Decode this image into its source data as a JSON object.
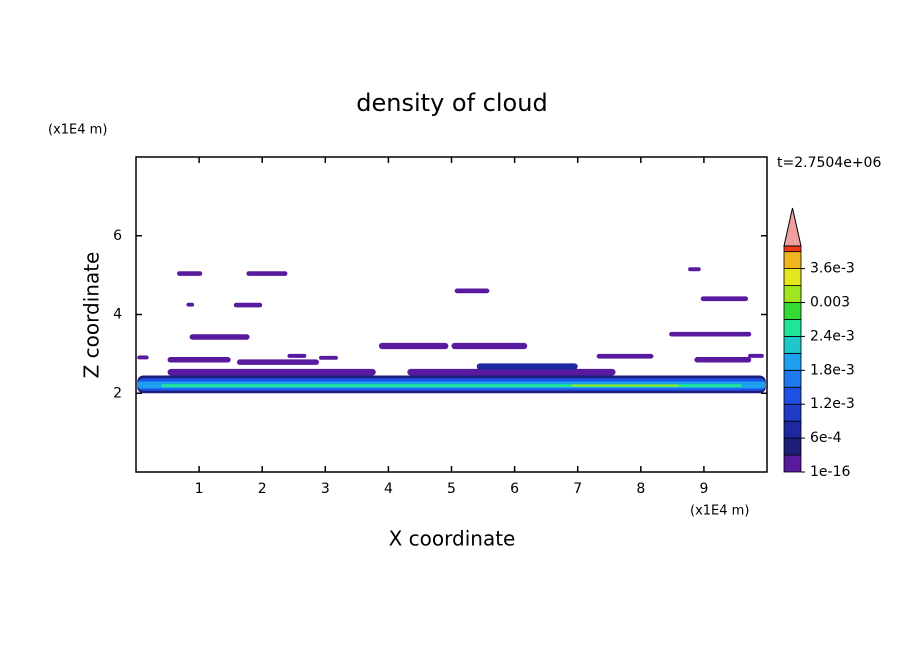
{
  "chart_data": {
    "type": "contour",
    "title": "density of cloud",
    "x_label": "X coordinate",
    "y_label": "Z coordinate",
    "x_unit": "(x1E4 m)",
    "y_unit": "(x1E4 m)",
    "time_label": "t=2.7504e+06",
    "xlim": [
      0,
      10
    ],
    "ylim": [
      0,
      8
    ],
    "xticks": [
      1,
      2,
      3,
      4,
      5,
      6,
      7,
      8,
      9
    ],
    "yticks": [
      2,
      4,
      6
    ],
    "colorbar": {
      "clim": [
        1e-16,
        0.004
      ],
      "levels": [
        1e-16,
        0.0003,
        0.0006,
        0.0009,
        0.0012,
        0.0015,
        0.0018,
        0.0021,
        0.0024,
        0.0027,
        0.003,
        0.0033,
        0.0036,
        0.0039
      ],
      "colors": [
        "#5a1aa0",
        "#1e1e78",
        "#1e28a0",
        "#1e3cc8",
        "#1e50e6",
        "#1e78f0",
        "#1ea0f0",
        "#1ec8c8",
        "#1ee696",
        "#32dc32",
        "#a0e61e",
        "#e6e61e",
        "#f0b41e",
        "#f03c1e"
      ],
      "extend_color": "#f0a0a0",
      "ticks": [
        1e-16,
        {
          "value": 0.0006,
          "label": "6e-4"
        },
        {
          "value": 0.0012,
          "label": "1.2e-3"
        },
        {
          "value": 0.0018,
          "label": "1.8e-3"
        },
        {
          "value": 0.0024,
          "label": "2.4e-3"
        },
        0.003,
        {
          "value": 0.0036,
          "label": "3.6e-3"
        }
      ]
    },
    "patches": [
      {
        "x": [
          0.02,
          9.98
        ],
        "z": [
          2.0,
          2.45
        ],
        "level": 1
      },
      {
        "x": [
          0.02,
          9.98
        ],
        "z": [
          2.06,
          2.38
        ],
        "level": 4
      },
      {
        "x": [
          0.02,
          9.98
        ],
        "z": [
          2.12,
          2.3
        ],
        "level": 6
      },
      {
        "x": [
          0.4,
          9.6
        ],
        "z": [
          2.16,
          2.23
        ],
        "level": 8
      },
      {
        "x": [
          6.9,
          8.6
        ],
        "z": [
          2.17,
          2.22
        ],
        "level": 10
      },
      {
        "x": [
          0.5,
          3.8
        ],
        "z": [
          2.45,
          2.62
        ],
        "level": 0
      },
      {
        "x": [
          4.3,
          7.6
        ],
        "z": [
          2.45,
          2.62
        ],
        "level": 0
      },
      {
        "x": [
          5.4,
          7.0
        ],
        "z": [
          2.6,
          2.76
        ],
        "level": 2
      },
      {
        "x": [
          0.5,
          1.5
        ],
        "z": [
          2.78,
          2.92
        ],
        "level": 0
      },
      {
        "x": [
          1.6,
          2.9
        ],
        "z": [
          2.72,
          2.86
        ],
        "level": 0
      },
      {
        "x": [
          2.4,
          2.7
        ],
        "z": [
          2.9,
          3.0
        ],
        "level": 0
      },
      {
        "x": [
          2.9,
          3.2
        ],
        "z": [
          2.85,
          2.95
        ],
        "level": 0
      },
      {
        "x": [
          0.02,
          0.2
        ],
        "z": [
          2.86,
          2.96
        ],
        "level": 0
      },
      {
        "x": [
          7.3,
          8.2
        ],
        "z": [
          2.88,
          3.0
        ],
        "level": 0
      },
      {
        "x": [
          8.85,
          9.75
        ],
        "z": [
          2.78,
          2.92
        ],
        "level": 0
      },
      {
        "x": [
          9.7,
          9.95
        ],
        "z": [
          2.9,
          3.0
        ],
        "level": 0
      },
      {
        "x": [
          3.85,
          4.95
        ],
        "z": [
          3.12,
          3.28
        ],
        "level": 0
      },
      {
        "x": [
          5.0,
          6.2
        ],
        "z": [
          3.12,
          3.28
        ],
        "level": 0
      },
      {
        "x": [
          0.85,
          1.8
        ],
        "z": [
          3.36,
          3.5
        ],
        "level": 0
      },
      {
        "x": [
          8.45,
          9.75
        ],
        "z": [
          3.44,
          3.56
        ],
        "level": 0
      },
      {
        "x": [
          0.8,
          0.92
        ],
        "z": [
          4.2,
          4.3
        ],
        "level": 0
      },
      {
        "x": [
          1.55,
          2.0
        ],
        "z": [
          4.18,
          4.3
        ],
        "level": 0
      },
      {
        "x": [
          8.95,
          9.7
        ],
        "z": [
          4.34,
          4.46
        ],
        "level": 0
      },
      {
        "x": [
          5.05,
          5.6
        ],
        "z": [
          4.54,
          4.66
        ],
        "level": 0
      },
      {
        "x": [
          0.65,
          1.05
        ],
        "z": [
          4.98,
          5.1
        ],
        "level": 0
      },
      {
        "x": [
          1.75,
          2.4
        ],
        "z": [
          4.98,
          5.1
        ],
        "level": 0
      },
      {
        "x": [
          8.75,
          8.95
        ],
        "z": [
          5.1,
          5.2
        ],
        "level": 0
      }
    ]
  }
}
